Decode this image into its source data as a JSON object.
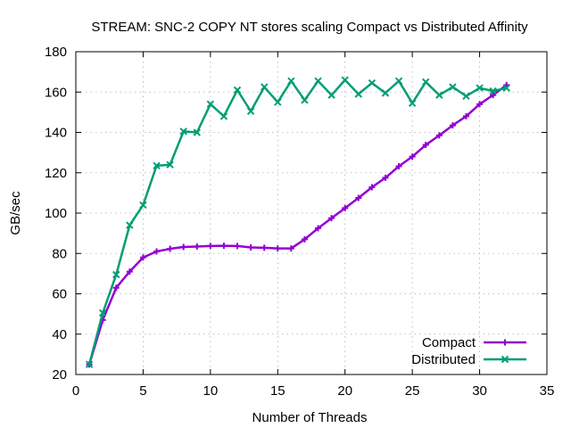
{
  "chart_data": {
    "type": "line",
    "title": "STREAM: SNC-2 COPY NT stores scaling Compact vs Distributed Affinity",
    "xlabel": "Number of Threads",
    "ylabel": "GB/sec",
    "xlim": [
      0,
      35
    ],
    "ylim": [
      20,
      180
    ],
    "xticks": [
      0,
      5,
      10,
      15,
      20,
      25,
      30,
      35
    ],
    "yticks": [
      20,
      40,
      60,
      80,
      100,
      120,
      140,
      160,
      180
    ],
    "grid": true,
    "legend_position": "bottom-right",
    "x": [
      1,
      2,
      3,
      4,
      5,
      6,
      7,
      8,
      9,
      10,
      11,
      12,
      13,
      14,
      15,
      16,
      17,
      18,
      19,
      20,
      21,
      22,
      23,
      24,
      25,
      26,
      27,
      28,
      29,
      30,
      31,
      32
    ],
    "series": [
      {
        "name": "Compact",
        "color": "#9400d3",
        "marker": "plus",
        "values": [
          25,
          47,
          63,
          71,
          78,
          81,
          82.3,
          83.2,
          83.4,
          83.7,
          83.8,
          83.7,
          83,
          82.8,
          82.5,
          82.5,
          87,
          92.5,
          97.5,
          102.5,
          107.5,
          112.8,
          117.5,
          123.2,
          128,
          133.8,
          138.5,
          143.5,
          148,
          154,
          158.5,
          163.5
        ]
      },
      {
        "name": "Distributed",
        "color": "#009e73",
        "marker": "x",
        "values": [
          25,
          50.5,
          69.5,
          94,
          104,
          123.5,
          124,
          140.5,
          140,
          154,
          148,
          161,
          150.5,
          162.5,
          155,
          165.5,
          156,
          165.5,
          158.5,
          166,
          159,
          164.5,
          159.5,
          165.5,
          154.5,
          165,
          158.5,
          162.5,
          158,
          162,
          160.5,
          162
        ]
      }
    ]
  }
}
